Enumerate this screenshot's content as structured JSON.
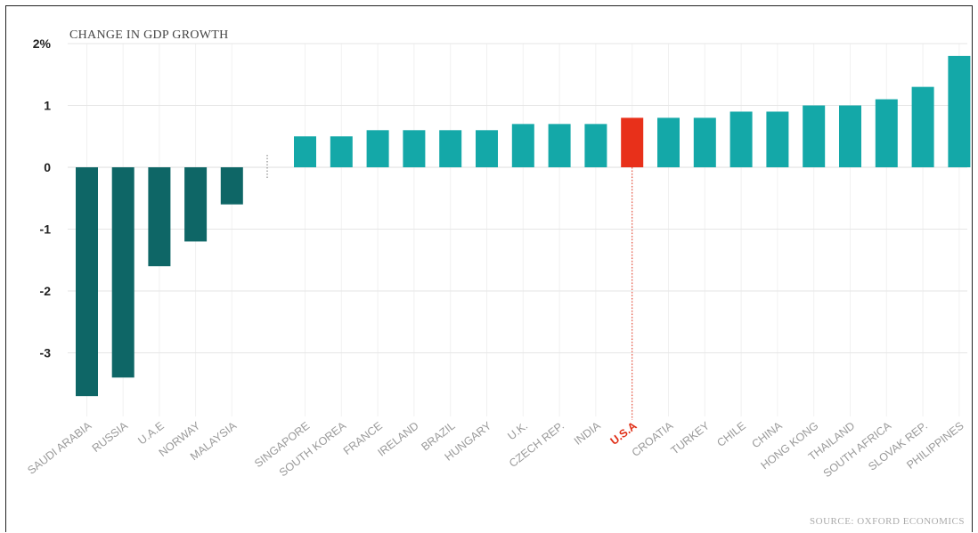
{
  "chart_data": {
    "type": "bar",
    "title": "CHANGE IN GDP GROWTH",
    "source": "SOURCE: OXFORD ECONOMICS",
    "y_ticks": [
      {
        "value": 2,
        "label": "2%"
      },
      {
        "value": 1,
        "label": "1"
      },
      {
        "value": 0,
        "label": "0"
      },
      {
        "value": -1,
        "label": "-1"
      },
      {
        "value": -2,
        "label": "-2"
      },
      {
        "value": -3,
        "label": "-3"
      }
    ],
    "ylim": [
      -3.8,
      2.05
    ],
    "grid": true,
    "highlight": "U.S.A",
    "colors": {
      "negative": "#0e6666",
      "positive": "#14a8a8",
      "highlight": "#e8301a",
      "grid": "#e6e6e6",
      "tick_label": "#9a9a9a"
    },
    "categories": [
      "SAUDI ARABIA",
      "RUSSIA",
      "U.A.E",
      "NORWAY",
      "MALAYSIA",
      "SINGAPORE",
      "SOUTH KOREA",
      "FRANCE",
      "IRELAND",
      "BRAZIL",
      "HUNGARY",
      "U.K.",
      "CZECH REP.",
      "INDIA",
      "U.S.A",
      "CROATIA",
      "TURKEY",
      "CHILE",
      "CHINA",
      "HONG KONG",
      "THAILAND",
      "SOUTH AFRICA",
      "SLOVAK REP.",
      "PHILIPPINES"
    ],
    "values": [
      -3.7,
      -3.4,
      -1.6,
      -1.2,
      -0.6,
      0.5,
      0.5,
      0.6,
      0.6,
      0.6,
      0.6,
      0.7,
      0.7,
      0.7,
      0.8,
      0.8,
      0.8,
      0.9,
      0.9,
      1.0,
      1.0,
      1.1,
      1.3,
      1.8
    ]
  }
}
